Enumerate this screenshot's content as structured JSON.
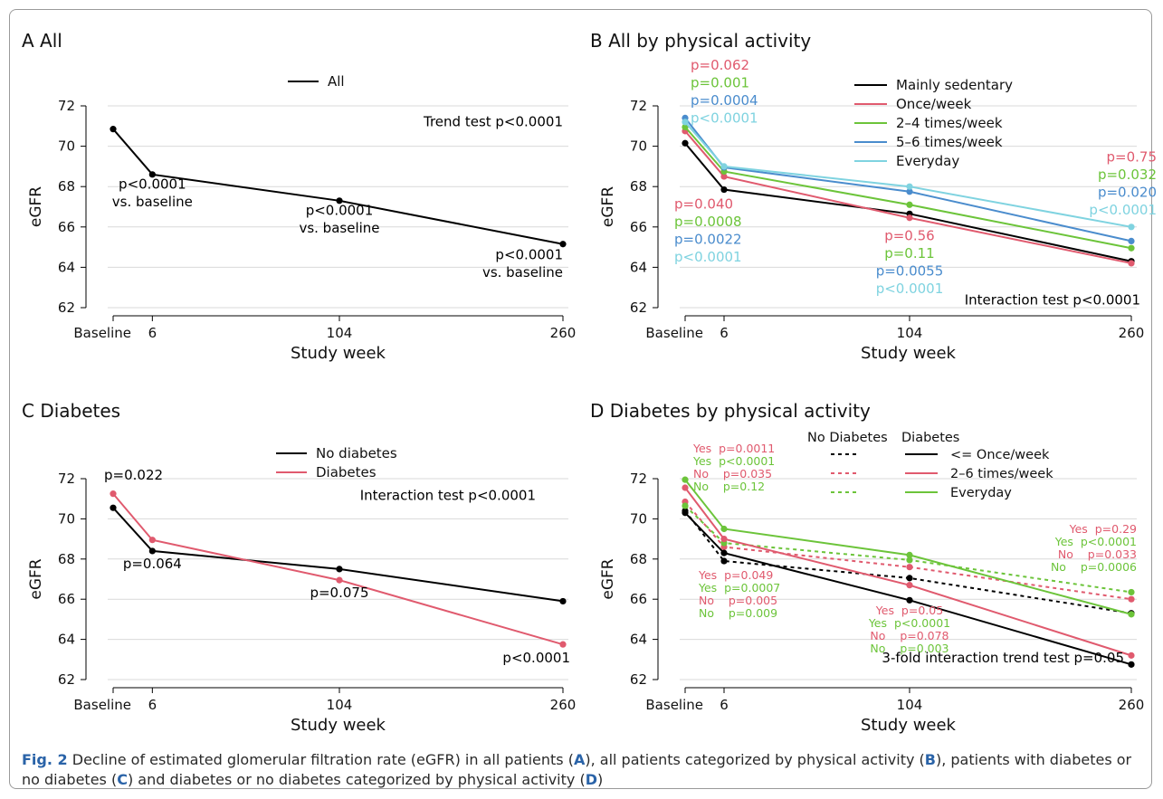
{
  "figure": {
    "caption_label": "Fig. 2",
    "caption_text": [
      {
        "t": " Decline of estimated glomerular filtration rate (eGFR) in all patients (",
        "b": false
      },
      {
        "t": "A",
        "b": true
      },
      {
        "t": "), all patients categorized by physical activity (",
        "b": false
      },
      {
        "t": "B",
        "b": true
      },
      {
        "t": "), patients with diabetes or no diabetes (",
        "b": false
      },
      {
        "t": "C",
        "b": true
      },
      {
        "t": ") and diabetes or no diabetes categorized by physical activity (",
        "b": false
      },
      {
        "t": "D",
        "b": true
      },
      {
        "t": ")",
        "b": false
      }
    ]
  },
  "colors": {
    "black": "#000000",
    "red": "#e05a6e",
    "green": "#6cc43a",
    "blue": "#4a8ccd",
    "cyan": "#7fd3e0"
  },
  "chart_data": [
    {
      "id": "A",
      "type": "line",
      "title": "A All",
      "xlabel": "Study week",
      "ylabel": "eGFR",
      "x": [
        0,
        6,
        104,
        260
      ],
      "xtick_labels": [
        "Baseline",
        "6",
        "104",
        "260"
      ],
      "ylim": [
        62,
        72
      ],
      "yticks": [
        62,
        64,
        66,
        68,
        70,
        72
      ],
      "grid": true,
      "legend_position": "top-center",
      "series": [
        {
          "name": "All",
          "color": "black",
          "dash": false,
          "values": [
            70.85,
            68.6,
            67.3,
            65.15
          ],
          "legend": true
        }
      ],
      "annotations": [
        {
          "lines": [
            "Trend test p<0.0001"
          ],
          "x": 260,
          "y": 71.0,
          "anchor": "end",
          "color": "black"
        },
        {
          "lines": [
            "p<0.0001",
            "vs. baseline"
          ],
          "x": 6,
          "y": 67.9,
          "anchor": "middle",
          "color": "black"
        },
        {
          "lines": [
            "p<0.0001",
            "vs. baseline"
          ],
          "x": 104,
          "y": 66.6,
          "anchor": "middle",
          "color": "black"
        },
        {
          "lines": [
            "p<0.0001",
            "vs. baseline"
          ],
          "x": 260,
          "y": 64.4,
          "anchor": "end",
          "color": "black"
        }
      ]
    },
    {
      "id": "B",
      "type": "line",
      "title": "B All by physical activity",
      "xlabel": "Study week",
      "ylabel": "eGFR",
      "x": [
        0,
        6,
        104,
        260
      ],
      "xtick_labels": [
        "Baseline",
        "6",
        "104",
        "260"
      ],
      "ylim": [
        62,
        72
      ],
      "yticks": [
        62,
        64,
        66,
        68,
        70,
        72
      ],
      "grid": true,
      "legend_position": "top-right",
      "series": [
        {
          "name": "Mainly sedentary",
          "color": "black",
          "dash": false,
          "values": [
            70.15,
            67.85,
            66.65,
            64.3
          ],
          "legend": true
        },
        {
          "name": "Once/week",
          "color": "red",
          "dash": false,
          "values": [
            70.75,
            68.5,
            66.45,
            64.2
          ],
          "legend": true
        },
        {
          "name": "2–4 times/week",
          "color": "green",
          "dash": false,
          "values": [
            70.95,
            68.75,
            67.1,
            64.95
          ],
          "legend": true
        },
        {
          "name": "5–6 times/week",
          "color": "blue",
          "dash": false,
          "values": [
            71.4,
            68.95,
            67.75,
            65.3
          ],
          "legend": true
        },
        {
          "name": "Everyday",
          "color": "cyan",
          "dash": false,
          "values": [
            71.2,
            69.0,
            68.0,
            66.0
          ],
          "legend": true
        }
      ],
      "annotations": [
        {
          "lines": [
            "p=0.062",
            "p=0.001",
            "p=0.0004",
            "p<0.0001"
          ],
          "colors": [
            "red",
            "green",
            "blue",
            "cyan"
          ],
          "x": 0,
          "y": 73.8,
          "anchor": "start",
          "dx": 6
        },
        {
          "lines": [
            "p=0.040",
            "p=0.0008",
            "p=0.0022",
            "p<0.0001"
          ],
          "colors": [
            "red",
            "green",
            "blue",
            "cyan"
          ],
          "x": 0,
          "y": 66.9,
          "anchor": "start",
          "dx": -12
        },
        {
          "lines": [
            "p=0.56",
            "p=0.11",
            "p=0.0055",
            "p<0.0001"
          ],
          "colors": [
            "red",
            "green",
            "blue",
            "cyan"
          ],
          "x": 104,
          "y": 65.35,
          "anchor": "middle"
        },
        {
          "lines": [
            "p=0.75",
            "p=0.032",
            "p=0.020",
            "p<0.0001"
          ],
          "colors": [
            "red",
            "green",
            "blue",
            "cyan"
          ],
          "x": 260,
          "y": 69.25,
          "anchor": "end",
          "dx": 28
        },
        {
          "lines": [
            "Interaction test p<0.0001"
          ],
          "colors": [
            "black"
          ],
          "x": 260,
          "y": 62.15,
          "anchor": "end",
          "dx": 10
        }
      ]
    },
    {
      "id": "C",
      "type": "line",
      "title": "C Diabetes",
      "xlabel": "Study week",
      "ylabel": "eGFR",
      "x": [
        0,
        6,
        104,
        260
      ],
      "xtick_labels": [
        "Baseline",
        "6",
        "104",
        "260"
      ],
      "ylim": [
        62,
        72
      ],
      "yticks": [
        62,
        64,
        66,
        68,
        70,
        72
      ],
      "grid": true,
      "legend_position": "top-center",
      "series": [
        {
          "name": "No diabetes",
          "color": "black",
          "dash": false,
          "values": [
            70.55,
            68.4,
            67.5,
            65.9
          ],
          "legend": true
        },
        {
          "name": "Diabetes",
          "color": "red",
          "dash": false,
          "values": [
            71.25,
            68.95,
            66.95,
            63.75
          ],
          "legend": true
        }
      ],
      "annotations": [
        {
          "lines": [
            "p=0.022"
          ],
          "colors": [
            "black"
          ],
          "x": 0,
          "y": 71.95,
          "anchor": "start",
          "dx": -10
        },
        {
          "lines": [
            "Interaction test p<0.0001"
          ],
          "colors": [
            "black"
          ],
          "x": 260,
          "y": 70.95,
          "anchor": "end",
          "dx": -30
        },
        {
          "lines": [
            "p=0.064"
          ],
          "colors": [
            "black"
          ],
          "x": 6,
          "y": 67.55,
          "anchor": "middle"
        },
        {
          "lines": [
            "p=0.075"
          ],
          "colors": [
            "black"
          ],
          "x": 104,
          "y": 66.1,
          "anchor": "middle"
        },
        {
          "lines": [
            "p<0.0001"
          ],
          "colors": [
            "black"
          ],
          "x": 260,
          "y": 62.85,
          "anchor": "end",
          "dx": 8
        }
      ]
    },
    {
      "id": "D",
      "type": "line",
      "title": "D Diabetes by physical activity",
      "xlabel": "Study week",
      "ylabel": "eGFR",
      "x": [
        0,
        6,
        104,
        260
      ],
      "xtick_labels": [
        "Baseline",
        "6",
        "104",
        "260"
      ],
      "ylim": [
        62,
        72
      ],
      "yticks": [
        62,
        64,
        66,
        68,
        70,
        72
      ],
      "grid": true,
      "legend_position": "top-right",
      "legend_headers": [
        "No Diabetes",
        "Diabetes"
      ],
      "series": [
        {
          "name": "<= Once/week",
          "color": "black",
          "dash": false,
          "values": [
            70.3,
            68.3,
            65.95,
            62.75
          ],
          "legend": true
        },
        {
          "name": "2–6 times/week",
          "color": "red",
          "dash": false,
          "values": [
            71.55,
            69.0,
            66.7,
            63.2
          ],
          "legend": true
        },
        {
          "name": "Everyday",
          "color": "green",
          "dash": false,
          "values": [
            71.95,
            69.5,
            68.2,
            65.25
          ],
          "legend": true
        },
        {
          "name": "",
          "color": "black",
          "dash": true,
          "values": [
            70.4,
            67.9,
            67.05,
            65.3
          ],
          "legend": false
        },
        {
          "name": "",
          "color": "red",
          "dash": true,
          "values": [
            70.85,
            68.6,
            67.6,
            66.0
          ],
          "legend": false
        },
        {
          "name": "",
          "color": "green",
          "dash": true,
          "values": [
            70.65,
            68.8,
            67.95,
            66.35
          ],
          "legend": false
        }
      ],
      "annotations": [
        {
          "lines": [
            "Yes  p=0.0011",
            "Yes  p<0.0001",
            "No    p=0.035",
            "No    p=0.12"
          ],
          "colors": [
            "red",
            "green",
            "red",
            "green"
          ],
          "x": 6,
          "y": 73.3,
          "anchor": "start",
          "dx": -34,
          "small": true
        },
        {
          "lines": [
            "Yes  p=0.049",
            "Yes  p=0.0007",
            "No    p=0.005",
            "No    p=0.009"
          ],
          "colors": [
            "red",
            "green",
            "red",
            "green"
          ],
          "x": 6,
          "y": 67.0,
          "anchor": "start",
          "dx": -28,
          "small": true
        },
        {
          "lines": [
            "Yes  p=0.05",
            "Yes  p<0.0001",
            "No    p=0.078",
            "No    p=0.003"
          ],
          "colors": [
            "red",
            "green",
            "red",
            "green"
          ],
          "x": 104,
          "y": 65.25,
          "anchor": "middle",
          "small": true
        },
        {
          "lines": [
            "Yes  p=0.29",
            "Yes  p<0.0001",
            "No    p=0.033",
            "No    p=0.0006"
          ],
          "colors": [
            "red",
            "green",
            "red",
            "green"
          ],
          "x": 260,
          "y": 69.3,
          "anchor": "end",
          "dx": 6,
          "small": true
        },
        {
          "lines": [
            "3-fold interaction trend test p=0.05"
          ],
          "colors": [
            "black"
          ],
          "x": 260,
          "y": 62.85,
          "anchor": "end",
          "dx": -8
        }
      ]
    }
  ]
}
